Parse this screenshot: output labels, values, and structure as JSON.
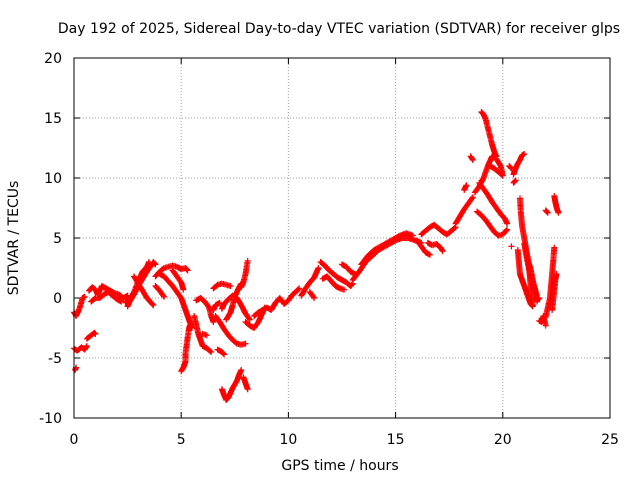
{
  "chart_data": {
    "type": "scatter",
    "title": "Day 192 of 2025, Sidereal Day-to-day VTEC variation (SDTVAR) for receiver glps",
    "xlabel": "GPS time / hours",
    "ylabel": "SDTVAR / TECUs",
    "xlim": [
      0,
      25
    ],
    "ylim": [
      -10,
      20
    ],
    "xticks": [
      0,
      5,
      10,
      15,
      20,
      25
    ],
    "yticks": [
      -10,
      -5,
      0,
      5,
      10,
      15,
      20
    ],
    "xtick_labels": [
      "0",
      "5",
      "10",
      "15",
      "20",
      "25"
    ],
    "ytick_labels": [
      "-10",
      "-5",
      "0",
      "5",
      "10",
      "15",
      "20"
    ],
    "grid": true,
    "marker": "+",
    "color": "#ff0000",
    "segments": [
      [
        [
          0.0,
          -1.2
        ],
        [
          0.1,
          -1.5
        ],
        [
          0.25,
          -0.9
        ],
        [
          0.4,
          0.0
        ],
        [
          0.5,
          0.1
        ]
      ],
      [
        [
          0.0,
          -4.2
        ],
        [
          0.15,
          -4.4
        ],
        [
          0.35,
          -4.1
        ],
        [
          0.5,
          -4.3
        ],
        [
          0.6,
          -4.0
        ]
      ],
      [
        [
          0.05,
          -6.0
        ],
        [
          0.1,
          -5.8
        ]
      ],
      [
        [
          0.6,
          -3.4
        ],
        [
          0.8,
          -3.1
        ],
        [
          0.95,
          -2.9
        ],
        [
          1.0,
          -3.0
        ]
      ],
      [
        [
          0.7,
          0.6
        ],
        [
          0.85,
          0.9
        ],
        [
          1.0,
          0.7
        ],
        [
          1.1,
          0.3
        ],
        [
          1.2,
          0.6
        ],
        [
          1.3,
          1.0
        ],
        [
          1.5,
          0.8
        ],
        [
          1.7,
          0.6
        ],
        [
          1.9,
          0.4
        ],
        [
          2.1,
          0.3
        ],
        [
          2.3,
          0.0
        ],
        [
          2.5,
          0.2
        ]
      ],
      [
        [
          0.8,
          -0.3
        ],
        [
          1.0,
          0.0
        ],
        [
          1.2,
          0.0
        ],
        [
          1.4,
          0.3
        ],
        [
          1.6,
          0.5
        ],
        [
          1.8,
          0.2
        ],
        [
          2.0,
          -0.1
        ],
        [
          2.2,
          -0.3
        ]
      ],
      [
        [
          2.5,
          -0.7
        ],
        [
          2.6,
          -0.3
        ],
        [
          2.8,
          0.3
        ],
        [
          3.0,
          1.0
        ],
        [
          3.2,
          1.6
        ],
        [
          3.4,
          2.2
        ],
        [
          3.6,
          2.7
        ],
        [
          3.7,
          3.0
        ],
        [
          3.8,
          2.8
        ]
      ],
      [
        [
          2.4,
          -0.4
        ],
        [
          2.6,
          -0.1
        ],
        [
          2.8,
          0.5
        ],
        [
          3.0,
          1.4
        ],
        [
          3.2,
          2.2
        ],
        [
          3.4,
          2.6
        ],
        [
          3.5,
          3.0
        ]
      ],
      [
        [
          2.8,
          1.8
        ],
        [
          3.0,
          1.2
        ],
        [
          3.2,
          0.6
        ],
        [
          3.4,
          0.0
        ],
        [
          3.6,
          -0.4
        ],
        [
          3.7,
          -0.6
        ]
      ],
      [
        [
          3.8,
          1.0
        ],
        [
          4.0,
          0.6
        ],
        [
          4.2,
          0.1
        ]
      ],
      [
        [
          3.8,
          1.8
        ],
        [
          4.0,
          2.2
        ],
        [
          4.2,
          2.5
        ],
        [
          4.4,
          2.6
        ],
        [
          4.6,
          2.7
        ],
        [
          4.8,
          2.6
        ],
        [
          5.0,
          2.4
        ],
        [
          5.2,
          2.5
        ],
        [
          5.3,
          2.3
        ]
      ],
      [
        [
          4.0,
          2.0
        ],
        [
          4.2,
          1.8
        ],
        [
          4.4,
          1.4
        ],
        [
          4.6,
          1.0
        ],
        [
          4.8,
          0.5
        ],
        [
          5.0,
          0.0
        ],
        [
          5.1,
          -0.5
        ],
        [
          5.2,
          -1.0
        ],
        [
          5.3,
          -1.5
        ],
        [
          5.4,
          -2.0
        ],
        [
          5.5,
          -2.5
        ]
      ],
      [
        [
          4.6,
          2.3
        ],
        [
          4.8,
          1.8
        ],
        [
          5.0,
          1.3
        ],
        [
          5.1,
          0.7
        ]
      ],
      [
        [
          5.0,
          -6.1
        ],
        [
          5.1,
          -5.8
        ],
        [
          5.2,
          -5.3
        ],
        [
          5.2,
          -4.6
        ],
        [
          5.25,
          -4.0
        ],
        [
          5.3,
          -3.3
        ],
        [
          5.35,
          -2.7
        ],
        [
          5.4,
          -2.3
        ]
      ],
      [
        [
          5.6,
          -1.5
        ],
        [
          5.7,
          -2.2
        ],
        [
          5.8,
          -3.0
        ],
        [
          5.9,
          -3.5
        ],
        [
          6.0,
          -4.0
        ],
        [
          6.2,
          -4.2
        ],
        [
          6.4,
          -4.5
        ]
      ],
      [
        [
          5.7,
          -0.2
        ],
        [
          5.9,
          0.0
        ],
        [
          6.1,
          -0.3
        ],
        [
          6.3,
          -0.8
        ],
        [
          6.4,
          -1.5
        ],
        [
          6.5,
          -2.0
        ]
      ],
      [
        [
          6.0,
          -3.0
        ],
        [
          6.2,
          -3.1
        ]
      ],
      [
        [
          6.5,
          -1.0
        ],
        [
          6.6,
          -0.6
        ],
        [
          6.8,
          -0.4
        ]
      ],
      [
        [
          6.5,
          0.8
        ],
        [
          6.7,
          1.1
        ],
        [
          6.9,
          1.2
        ],
        [
          7.1,
          1.1
        ],
        [
          7.3,
          1.0
        ]
      ],
      [
        [
          6.7,
          -4.3
        ],
        [
          6.9,
          -4.5
        ],
        [
          7.0,
          -4.7
        ]
      ],
      [
        [
          6.6,
          -1.5
        ],
        [
          6.8,
          -2.0
        ],
        [
          7.0,
          -2.6
        ],
        [
          7.2,
          -3.1
        ],
        [
          7.4,
          -3.5
        ],
        [
          7.6,
          -3.8
        ],
        [
          7.8,
          -3.9
        ],
        [
          8.0,
          -3.8
        ]
      ],
      [
        [
          6.9,
          -0.9
        ],
        [
          7.0,
          -0.5
        ],
        [
          7.2,
          -0.1
        ],
        [
          7.4,
          0.2
        ],
        [
          7.6,
          0.0
        ],
        [
          7.8,
          -0.6
        ],
        [
          8.0,
          -1.3
        ],
        [
          8.2,
          -1.8
        ]
      ],
      [
        [
          7.1,
          -1.8
        ],
        [
          7.3,
          -1.2
        ],
        [
          7.4,
          -0.6
        ],
        [
          7.5,
          0.1
        ],
        [
          7.6,
          0.5
        ],
        [
          7.7,
          0.9
        ],
        [
          7.8,
          1.2
        ]
      ],
      [
        [
          6.9,
          -7.6
        ],
        [
          7.0,
          -8.1
        ],
        [
          7.1,
          -8.5
        ],
        [
          7.2,
          -8.3
        ],
        [
          7.3,
          -7.9
        ],
        [
          7.4,
          -7.5
        ],
        [
          7.5,
          -7.2
        ],
        [
          7.6,
          -6.9
        ],
        [
          7.7,
          -6.4
        ],
        [
          7.8,
          -6.0
        ]
      ],
      [
        [
          7.9,
          -6.6
        ],
        [
          8.0,
          -7.1
        ],
        [
          8.1,
          -7.6
        ]
      ],
      [
        [
          7.8,
          0.9
        ],
        [
          7.9,
          1.3
        ],
        [
          8.0,
          2.0
        ],
        [
          8.1,
          3.1
        ]
      ],
      [
        [
          8.0,
          -2.0
        ],
        [
          8.2,
          -2.3
        ],
        [
          8.4,
          -2.5
        ],
        [
          8.6,
          -2.0
        ],
        [
          8.8,
          -1.2
        ],
        [
          8.9,
          -0.8
        ]
      ],
      [
        [
          8.4,
          -1.5
        ],
        [
          8.6,
          -1.2
        ],
        [
          8.8,
          -1.0
        ],
        [
          9.0,
          -0.8
        ],
        [
          9.2,
          -1.0
        ],
        [
          9.4,
          -0.4
        ],
        [
          9.6,
          0.0
        ],
        [
          9.8,
          -0.5
        ],
        [
          10.0,
          -0.2
        ],
        [
          10.2,
          0.3
        ],
        [
          10.4,
          0.6
        ],
        [
          10.5,
          0.8
        ]
      ],
      [
        [
          10.6,
          0.2
        ],
        [
          10.8,
          0.8
        ],
        [
          11.0,
          1.3
        ],
        [
          11.2,
          1.7
        ],
        [
          11.4,
          2.5
        ]
      ],
      [
        [
          11.0,
          0.5
        ],
        [
          11.2,
          0.0
        ]
      ],
      [
        [
          11.5,
          3.0
        ],
        [
          11.7,
          2.7
        ],
        [
          11.9,
          2.3
        ],
        [
          12.1,
          2.0
        ],
        [
          12.3,
          1.7
        ],
        [
          12.5,
          1.5
        ],
        [
          12.7,
          1.3
        ],
        [
          12.9,
          1.0
        ],
        [
          13.0,
          1.2
        ]
      ],
      [
        [
          11.6,
          1.6
        ],
        [
          11.8,
          1.8
        ],
        [
          12.0,
          1.4
        ],
        [
          12.2,
          1.0
        ],
        [
          12.4,
          0.8
        ],
        [
          12.6,
          0.7
        ]
      ],
      [
        [
          12.5,
          2.8
        ],
        [
          12.7,
          2.6
        ],
        [
          12.9,
          2.2
        ],
        [
          13.1,
          2.0
        ]
      ],
      [
        [
          13.0,
          1.5
        ],
        [
          13.3,
          2.2
        ],
        [
          13.6,
          3.0
        ],
        [
          13.9,
          3.5
        ],
        [
          14.2,
          4.0
        ],
        [
          14.5,
          4.3
        ],
        [
          14.8,
          4.6
        ],
        [
          15.0,
          4.8
        ],
        [
          15.3,
          5.0
        ],
        [
          15.6,
          5.0
        ],
        [
          15.9,
          4.8
        ],
        [
          16.2,
          4.6
        ]
      ],
      [
        [
          13.4,
          2.8
        ],
        [
          13.7,
          3.5
        ],
        [
          14.0,
          4.0
        ],
        [
          14.3,
          4.3
        ],
        [
          14.6,
          4.6
        ],
        [
          14.9,
          4.9
        ],
        [
          15.2,
          5.2
        ],
        [
          15.5,
          5.4
        ],
        [
          15.8,
          5.2
        ]
      ],
      [
        [
          16.0,
          4.8
        ],
        [
          16.2,
          4.3
        ],
        [
          16.4,
          3.8
        ],
        [
          16.6,
          3.6
        ]
      ],
      [
        [
          16.2,
          5.3
        ],
        [
          16.4,
          5.6
        ],
        [
          16.6,
          5.9
        ],
        [
          16.8,
          6.1
        ],
        [
          17.0,
          5.8
        ],
        [
          17.2,
          5.5
        ],
        [
          17.4,
          5.3
        ],
        [
          17.6,
          5.6
        ],
        [
          17.8,
          5.9
        ]
      ],
      [
        [
          16.5,
          4.6
        ],
        [
          16.7,
          4.4
        ],
        [
          16.9,
          4.5
        ],
        [
          17.1,
          4.2
        ],
        [
          17.2,
          3.9
        ]
      ],
      [
        [
          17.8,
          6.2
        ],
        [
          18.0,
          6.8
        ],
        [
          18.2,
          7.4
        ],
        [
          18.4,
          7.9
        ],
        [
          18.6,
          8.4
        ]
      ],
      [
        [
          18.2,
          9.0
        ],
        [
          18.3,
          9.4
        ]
      ],
      [
        [
          18.5,
          11.8
        ],
        [
          18.6,
          11.5
        ]
      ],
      [
        [
          18.7,
          8.8
        ],
        [
          18.9,
          9.3
        ],
        [
          19.1,
          10.0
        ],
        [
          19.3,
          11.0
        ],
        [
          19.5,
          11.8
        ],
        [
          19.7,
          11.6
        ],
        [
          19.9,
          11.0
        ],
        [
          20.0,
          10.2
        ]
      ],
      [
        [
          18.8,
          7.2
        ],
        [
          19.0,
          6.9
        ],
        [
          19.2,
          6.5
        ],
        [
          19.4,
          6.0
        ],
        [
          19.6,
          5.5
        ],
        [
          19.8,
          5.2
        ],
        [
          20.0,
          5.3
        ],
        [
          20.2,
          5.7
        ]
      ],
      [
        [
          18.9,
          9.6
        ],
        [
          19.1,
          9.1
        ],
        [
          19.3,
          8.6
        ],
        [
          19.5,
          8.0
        ],
        [
          19.7,
          7.5
        ],
        [
          19.9,
          7.0
        ],
        [
          20.1,
          6.6
        ],
        [
          20.2,
          6.2
        ]
      ],
      [
        [
          19.0,
          15.5
        ],
        [
          19.1,
          15.3
        ],
        [
          19.2,
          14.9
        ],
        [
          19.3,
          14.2
        ],
        [
          19.4,
          13.5
        ],
        [
          19.5,
          12.8
        ],
        [
          19.6,
          12.2
        ],
        [
          19.7,
          11.8
        ]
      ],
      [
        [
          19.4,
          11.0
        ],
        [
          19.6,
          10.8
        ],
        [
          19.8,
          10.5
        ],
        [
          20.0,
          10.2
        ]
      ],
      [
        [
          20.3,
          11.0
        ],
        [
          20.4,
          10.8
        ]
      ],
      [
        [
          20.5,
          10.3
        ],
        [
          20.6,
          10.8
        ],
        [
          20.7,
          11.2
        ],
        [
          20.8,
          11.5
        ],
        [
          20.9,
          11.9
        ],
        [
          21.0,
          12.0
        ]
      ],
      [
        [
          20.5,
          9.6
        ],
        [
          20.6,
          9.8
        ]
      ],
      [
        [
          20.4,
          4.3
        ]
      ],
      [
        [
          20.7,
          4.0
        ],
        [
          20.75,
          3.0
        ],
        [
          20.8,
          2.0
        ],
        [
          20.9,
          1.5
        ],
        [
          21.0,
          1.0
        ],
        [
          21.1,
          0.5
        ],
        [
          21.2,
          0.0
        ],
        [
          21.3,
          -0.5
        ],
        [
          21.4,
          -0.7
        ]
      ],
      [
        [
          20.8,
          8.3
        ],
        [
          20.85,
          7.0
        ],
        [
          20.9,
          6.0
        ],
        [
          21.0,
          5.0
        ],
        [
          21.1,
          4.0
        ],
        [
          21.2,
          3.0
        ],
        [
          21.25,
          2.0
        ],
        [
          21.3,
          1.0
        ],
        [
          21.35,
          0.0
        ],
        [
          21.4,
          -0.6
        ]
      ],
      [
        [
          21.0,
          4.5
        ],
        [
          21.1,
          3.5
        ],
        [
          21.2,
          2.6
        ],
        [
          21.3,
          1.8
        ],
        [
          21.4,
          1.2
        ],
        [
          21.5,
          0.8
        ],
        [
          21.6,
          0.0
        ]
      ],
      [
        [
          21.2,
          3.0
        ],
        [
          21.3,
          2.4
        ],
        [
          21.4,
          1.5
        ],
        [
          21.5,
          0.7
        ],
        [
          21.6,
          -0.3
        ]
      ],
      [
        [
          21.7,
          -1.9
        ],
        [
          21.8,
          -2.0
        ],
        [
          21.9,
          -1.5
        ],
        [
          22.0,
          -2.3
        ]
      ],
      [
        [
          21.6,
          -0.2
        ],
        [
          21.7,
          0.0
        ]
      ],
      [
        [
          22.0,
          7.3
        ],
        [
          22.1,
          7.1
        ]
      ],
      [
        [
          22.0,
          -1.6
        ],
        [
          22.1,
          -0.8
        ],
        [
          22.2,
          0.0
        ],
        [
          22.25,
          1.0
        ],
        [
          22.3,
          2.0
        ],
        [
          22.35,
          3.0
        ],
        [
          22.4,
          4.2
        ]
      ],
      [
        [
          22.3,
          -1.0
        ],
        [
          22.35,
          -0.2
        ],
        [
          22.4,
          0.6
        ],
        [
          22.45,
          1.5
        ],
        [
          22.5,
          2.0
        ]
      ],
      [
        [
          22.4,
          8.5
        ],
        [
          22.45,
          8.0
        ],
        [
          22.5,
          7.6
        ],
        [
          22.55,
          7.3
        ],
        [
          22.6,
          7.1
        ]
      ]
    ]
  }
}
